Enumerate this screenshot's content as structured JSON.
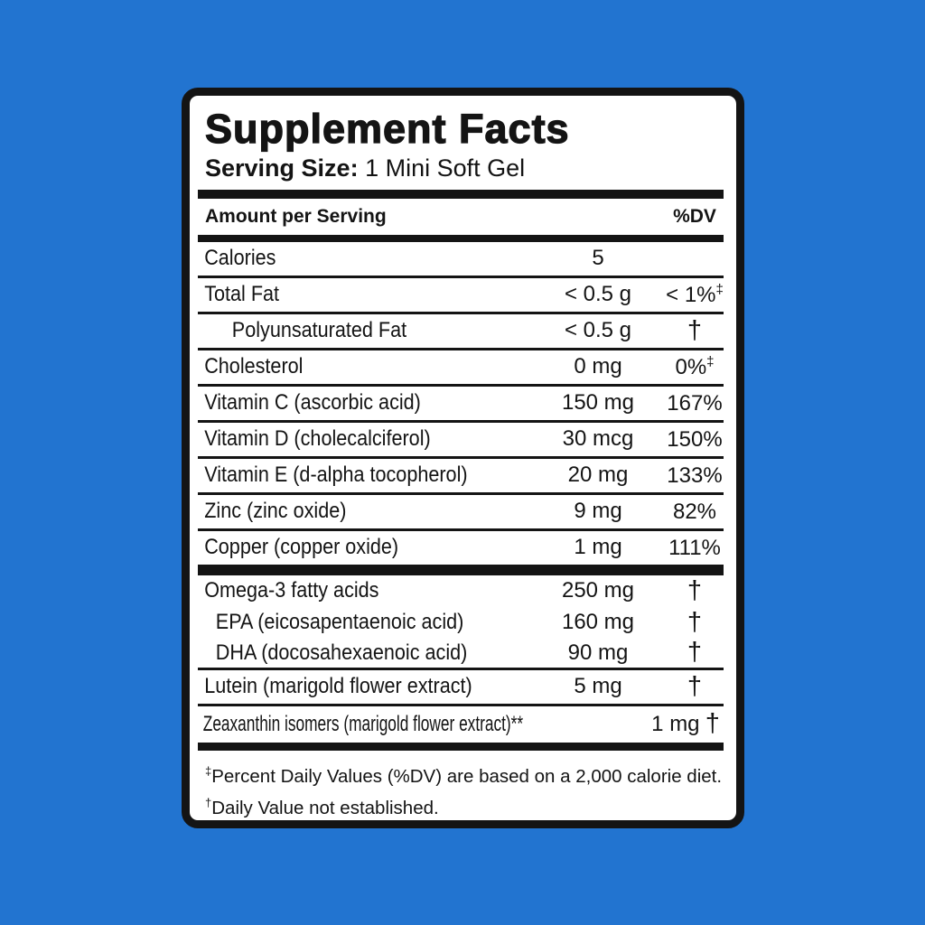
{
  "colors": {
    "page_background": "#2274d0",
    "panel_background": "#ffffff",
    "ink": "#141414"
  },
  "panel": {
    "title": "Supplement Facts",
    "serving_size_label": "Serving Size:",
    "serving_size_value": " 1 Mini Soft Gel",
    "header": {
      "amount": "Amount per Serving",
      "dv": "%DV"
    },
    "sections": [
      {
        "rows": [
          {
            "name": "Calories",
            "amount": "5",
            "dv": "",
            "dv_sup": ""
          },
          {
            "name": "Total Fat",
            "amount": "< 0.5 g",
            "dv": "< 1%",
            "dv_sup": "‡"
          },
          {
            "name": "Polyunsaturated Fat",
            "indent": 1,
            "amount": "< 0.5 g",
            "dv": "†",
            "dv_sup": ""
          },
          {
            "name": "Cholesterol",
            "amount": "0 mg",
            "dv": "0%",
            "dv_sup": "‡"
          },
          {
            "name": "Vitamin C (ascorbic acid)",
            "amount": "150 mg",
            "dv": "167%",
            "dv_sup": ""
          },
          {
            "name": "Vitamin D (cholecalciferol)",
            "amount": "30 mcg",
            "dv": "150%",
            "dv_sup": ""
          },
          {
            "name": "Vitamin E (d-alpha tocopherol)",
            "amount": "20 mg",
            "dv": "133%",
            "dv_sup": ""
          },
          {
            "name": "Zinc (zinc oxide)",
            "amount": "9 mg",
            "dv": "82%",
            "dv_sup": ""
          },
          {
            "name": "Copper (copper oxide)",
            "amount": "1 mg",
            "dv": "111%",
            "dv_sup": ""
          }
        ]
      },
      {
        "rows": [
          {
            "name": "Omega-3 fatty acids",
            "amount": "250 mg",
            "dv": "†",
            "dv_sup": "",
            "tight": true,
            "rule_after": false
          },
          {
            "name": "EPA (eicosapentaenoic acid)",
            "indent": 2,
            "amount": "160 mg",
            "dv": "†",
            "dv_sup": "",
            "tight": true,
            "rule_after": false
          },
          {
            "name": "DHA (docosahexaenoic acid)",
            "indent": 2,
            "amount": "90 mg",
            "dv": "†",
            "dv_sup": "",
            "tight": true
          },
          {
            "name": "Lutein (marigold flower extract)",
            "amount": "5 mg",
            "dv": "†",
            "dv_sup": ""
          },
          {
            "name": "Zeaxanthin isomers (marigold flower extract)**",
            "amount": "1 mg",
            "dv": "†",
            "dv_sup": "",
            "rule_after": false
          }
        ]
      }
    ],
    "footnotes": [
      {
        "marker": "‡",
        "text": "Percent Daily Values (%DV) are based on a 2,000 calorie diet."
      },
      {
        "marker": "†",
        "text": "Daily Value not established."
      }
    ]
  }
}
